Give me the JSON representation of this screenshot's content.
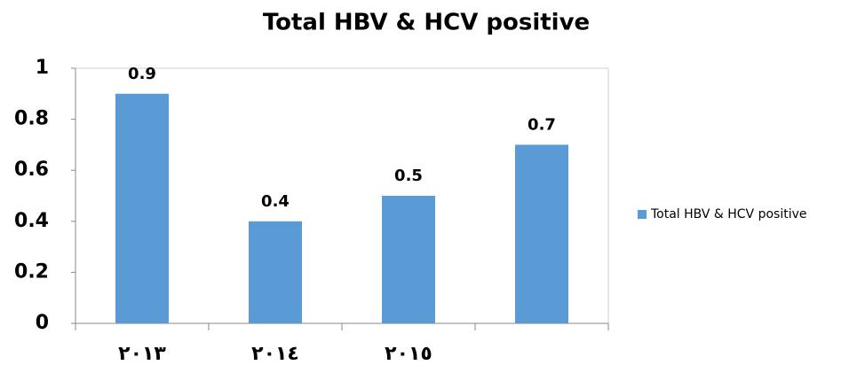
{
  "chart_data": {
    "type": "bar",
    "title": "Total HBV & HCV positive",
    "categories": [
      "٢٠١٣",
      "٢٠١٤",
      "٢٠١٥",
      null
    ],
    "series": [
      {
        "name": "Total HBV & HCV positive",
        "color": "#5b9bd5",
        "values": [
          0.9,
          0.4,
          0.5,
          0.7
        ]
      }
    ],
    "ylim": [
      0,
      1
    ],
    "yticks": [
      0,
      0.2,
      0.4,
      0.6,
      0.8,
      1
    ],
    "grid": false,
    "legend": "right"
  }
}
